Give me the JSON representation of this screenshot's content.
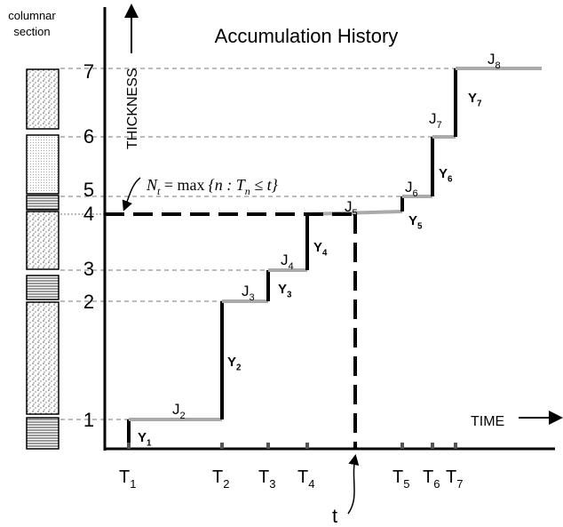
{
  "title": "Accumulation History",
  "column_label": [
    "columnar",
    "section"
  ],
  "axes": {
    "y_label": "THICKNESS",
    "x_label": "TIME"
  },
  "levels": [
    "1",
    "2",
    "3",
    "4",
    "5",
    "6",
    "7"
  ],
  "times": [
    {
      "base": "T",
      "sub": "1"
    },
    {
      "base": "T",
      "sub": "2"
    },
    {
      "base": "T",
      "sub": "3"
    },
    {
      "base": "T",
      "sub": "4"
    },
    {
      "base": "T",
      "sub": "5"
    },
    {
      "base": "T",
      "sub": "6"
    },
    {
      "base": "T",
      "sub": "7"
    }
  ],
  "jumps": [
    {
      "base": "Y",
      "sub": "1"
    },
    {
      "base": "Y",
      "sub": "2"
    },
    {
      "base": "Y",
      "sub": "3"
    },
    {
      "base": "Y",
      "sub": "4"
    },
    {
      "base": "Y",
      "sub": "5"
    },
    {
      "base": "Y",
      "sub": "6"
    },
    {
      "base": "Y",
      "sub": "7"
    }
  ],
  "waits": [
    {
      "base": "J",
      "sub": "2"
    },
    {
      "base": "J",
      "sub": "3"
    },
    {
      "base": "J",
      "sub": "4"
    },
    {
      "base": "J",
      "sub": "5"
    },
    {
      "base": "J",
      "sub": "6"
    },
    {
      "base": "J",
      "sub": "7"
    },
    {
      "base": "J",
      "sub": "8"
    }
  ],
  "formula": {
    "lhs": "N",
    "lhs_sub": "t",
    "mid": " = max",
    "set": "{n : T",
    "set_sub": "n",
    "rest": " ≤ t}"
  },
  "current_time": "t"
}
